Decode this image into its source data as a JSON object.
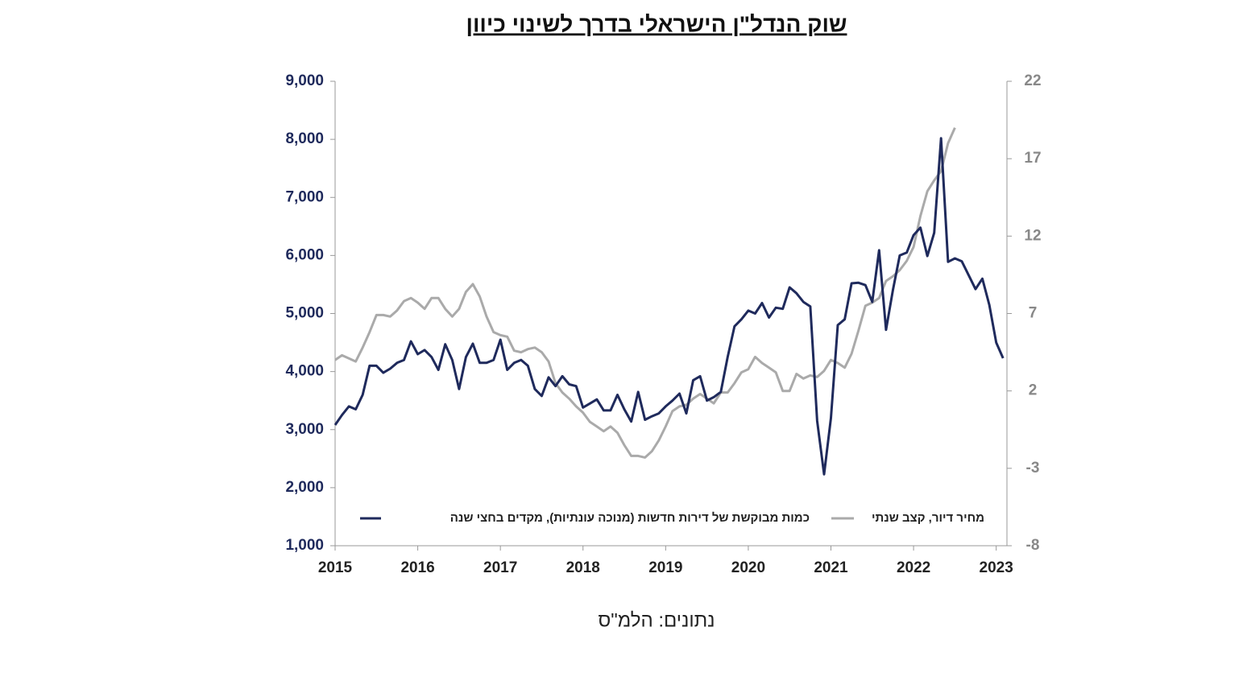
{
  "chart_data": {
    "type": "line",
    "title": "שוק הנדל\"ן הישראלי בדרך לשינוי כיוון",
    "source": "נתונים: הלמ\"ס",
    "x": [
      2015,
      2015.083,
      2015.167,
      2015.25,
      2015.333,
      2015.417,
      2015.5,
      2015.583,
      2015.667,
      2015.75,
      2015.833,
      2015.917,
      2016,
      2016.083,
      2016.167,
      2016.25,
      2016.333,
      2016.417,
      2016.5,
      2016.583,
      2016.667,
      2016.75,
      2016.833,
      2016.917,
      2017,
      2017.083,
      2017.167,
      2017.25,
      2017.333,
      2017.417,
      2017.5,
      2017.583,
      2017.667,
      2017.75,
      2017.833,
      2017.917,
      2018,
      2018.083,
      2018.167,
      2018.25,
      2018.333,
      2018.417,
      2018.5,
      2018.583,
      2018.667,
      2018.75,
      2018.833,
      2018.917,
      2019,
      2019.083,
      2019.167,
      2019.25,
      2019.333,
      2019.417,
      2019.5,
      2019.583,
      2019.667,
      2019.75,
      2019.833,
      2019.917,
      2020,
      2020.083,
      2020.167,
      2020.25,
      2020.333,
      2020.417,
      2020.5,
      2020.583,
      2020.667,
      2020.75,
      2020.833,
      2020.917,
      2021,
      2021.083,
      2021.167,
      2021.25,
      2021.333,
      2021.417,
      2021.5,
      2021.583,
      2021.667,
      2021.75,
      2021.833,
      2021.917,
      2022,
      2022.083,
      2022.167,
      2022.25,
      2022.333,
      2022.417,
      2022.5,
      2022.583,
      2022.667,
      2022.75,
      2022.833,
      2022.917,
      2023,
      2023.083
    ],
    "series": [
      {
        "name": "כמות מבוקשת של דירות חדשות (מנוכה עונתיות), מקדים בחצי שנה",
        "color": "#1f2a5c",
        "axis": "y",
        "values": [
          3080,
          3250,
          3400,
          3350,
          3600,
          4100,
          4100,
          3980,
          4050,
          4150,
          4200,
          4520,
          4300,
          4370,
          4250,
          4030,
          4470,
          4200,
          3700,
          4250,
          4480,
          4150,
          4150,
          4200,
          4550,
          4030,
          4150,
          4200,
          4100,
          3700,
          3580,
          3900,
          3750,
          3920,
          3780,
          3750,
          3380,
          3450,
          3520,
          3330,
          3330,
          3600,
          3350,
          3140,
          3650,
          3170,
          3230,
          3280,
          3400,
          3500,
          3620,
          3280,
          3850,
          3920,
          3500,
          3560,
          3650,
          4250,
          4780,
          4900,
          5050,
          5000,
          5180,
          4930,
          5100,
          5080,
          5450,
          5350,
          5200,
          5120,
          3150,
          2230,
          3200,
          4800,
          4900,
          5520,
          5530,
          5490,
          5200,
          6090,
          4720,
          5400,
          6000,
          6050,
          6350,
          6480,
          5990,
          6390,
          8020,
          5890,
          5950,
          5900,
          5660,
          5420,
          5600,
          5150,
          4500,
          4230
        ]
      },
      {
        "name": "מחיר דיור, קצב שנתי",
        "color": "#aaaaaa",
        "axis": "y2",
        "values": [
          4.0,
          4.3,
          4.1,
          3.9,
          4.8,
          5.8,
          6.9,
          6.9,
          6.8,
          7.2,
          7.8,
          8.0,
          7.7,
          7.3,
          8.0,
          8.0,
          7.3,
          6.8,
          7.3,
          8.4,
          8.9,
          8.1,
          6.8,
          5.8,
          5.6,
          5.5,
          4.6,
          4.5,
          4.7,
          4.8,
          4.5,
          3.9,
          2.5,
          1.9,
          1.5,
          1.0,
          0.6,
          0.0,
          -0.3,
          -0.6,
          -0.3,
          -0.7,
          -1.5,
          -2.2,
          -2.2,
          -2.3,
          -1.9,
          -1.2,
          -0.3,
          0.7,
          1.0,
          1.1,
          1.5,
          1.8,
          1.5,
          1.2,
          1.9,
          1.9,
          2.5,
          3.2,
          3.4,
          4.2,
          3.8,
          3.5,
          3.2,
          2.0,
          2.0,
          3.1,
          2.8,
          3.0,
          2.9,
          3.3,
          4.0,
          3.8,
          3.5,
          4.4,
          5.9,
          7.5,
          7.7,
          8.0,
          9.1,
          9.4,
          9.8,
          10.4,
          11.3,
          13.3,
          14.9,
          15.6,
          16.2,
          18.0,
          19.0,
          null,
          null,
          null,
          null,
          null,
          null,
          null
        ]
      }
    ],
    "xlim": [
      2015,
      2023.13
    ],
    "xticks": [
      2015,
      2016,
      2017,
      2018,
      2019,
      2020,
      2021,
      2022,
      2023
    ],
    "ylim": [
      1000,
      9000
    ],
    "yticks": [
      {
        "value": 1000,
        "label": "1,000"
      },
      {
        "value": 2000,
        "label": "2,000"
      },
      {
        "value": 3000,
        "label": "3,000"
      },
      {
        "value": 4000,
        "label": "4,000"
      },
      {
        "value": 5000,
        "label": "5,000"
      },
      {
        "value": 6000,
        "label": "6,000"
      },
      {
        "value": 7000,
        "label": "7,000"
      },
      {
        "value": 8000,
        "label": "8,000"
      },
      {
        "value": 9000,
        "label": "9,000"
      }
    ],
    "y2lim": [
      -8,
      22
    ],
    "y2ticks": [
      -8,
      -3,
      2,
      7,
      12,
      17,
      22
    ],
    "legend": "bottom"
  }
}
